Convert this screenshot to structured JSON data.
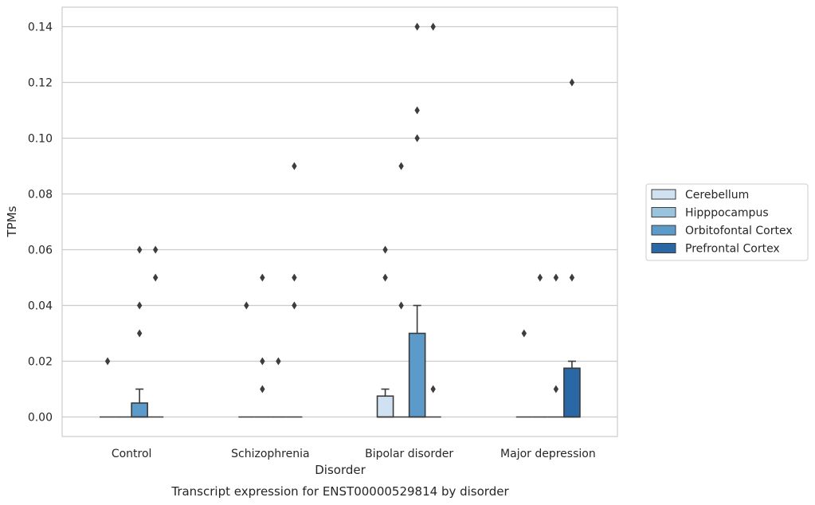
{
  "chart_data": {
    "type": "box",
    "title": "",
    "caption": "Transcript expression for ENST00000529814 by disorder",
    "xlabel": "Disorder",
    "ylabel": "TPMs",
    "ylim": [
      -0.007,
      0.147
    ],
    "yticks": [
      "0.00",
      "0.02",
      "0.04",
      "0.06",
      "0.08",
      "0.10",
      "0.12",
      "0.14"
    ],
    "ytick_values": [
      0,
      0.02,
      0.04,
      0.06,
      0.08,
      0.1,
      0.12,
      0.14
    ],
    "grid": "horizontal",
    "legend_position": "right",
    "categories": [
      "Control",
      "Schizophrenia",
      "Bipolar disorder",
      "Major depression"
    ],
    "series": [
      {
        "name": "Cerebellum",
        "color": "#d0e1f2",
        "boxes": [
          {
            "q1": 0,
            "median": 0,
            "q3": 0,
            "whisker_low": 0,
            "whisker_high": 0,
            "outliers": [
              0.02
            ]
          },
          {
            "q1": 0,
            "median": 0,
            "q3": 0,
            "whisker_low": 0,
            "whisker_high": 0,
            "outliers": [
              0.04
            ]
          },
          {
            "q1": 0,
            "median": 0,
            "q3": 0.0075,
            "whisker_low": 0,
            "whisker_high": 0.01,
            "outliers": [
              0.05,
              0.06
            ]
          },
          {
            "q1": 0,
            "median": 0,
            "q3": 0,
            "whisker_low": 0,
            "whisker_high": 0,
            "outliers": [
              0.03
            ]
          }
        ]
      },
      {
        "name": "Hipppocampus",
        "color": "#9ac3de",
        "boxes": [
          {
            "q1": 0,
            "median": 0,
            "q3": 0,
            "whisker_low": 0,
            "whisker_high": 0,
            "outliers": []
          },
          {
            "q1": 0,
            "median": 0,
            "q3": 0,
            "whisker_low": 0,
            "whisker_high": 0,
            "outliers": [
              0.01,
              0.02,
              0.05
            ]
          },
          {
            "q1": 0,
            "median": 0,
            "q3": 0,
            "whisker_low": 0,
            "whisker_high": 0,
            "outliers": [
              0.04,
              0.09
            ]
          },
          {
            "q1": 0,
            "median": 0,
            "q3": 0,
            "whisker_low": 0,
            "whisker_high": 0,
            "outliers": [
              0.05
            ]
          }
        ]
      },
      {
        "name": "Orbitofontal Cortex",
        "color": "#5b9ac9",
        "boxes": [
          {
            "q1": 0,
            "median": 0,
            "q3": 0.005,
            "whisker_low": 0,
            "whisker_high": 0.01,
            "outliers": [
              0.03,
              0.04,
              0.06
            ]
          },
          {
            "q1": 0,
            "median": 0,
            "q3": 0,
            "whisker_low": 0,
            "whisker_high": 0,
            "outliers": [
              0.02
            ]
          },
          {
            "q1": 0,
            "median": 0,
            "q3": 0.03,
            "whisker_low": 0,
            "whisker_high": 0.04,
            "outliers": [
              0.1,
              0.11,
              0.14
            ]
          },
          {
            "q1": 0,
            "median": 0,
            "q3": 0,
            "whisker_low": 0,
            "whisker_high": 0,
            "outliers": [
              0.01,
              0.05
            ]
          }
        ]
      },
      {
        "name": "Prefrontal Cortex",
        "color": "#2a67a5",
        "boxes": [
          {
            "q1": 0,
            "median": 0,
            "q3": 0,
            "whisker_low": 0,
            "whisker_high": 0,
            "outliers": [
              0.05,
              0.06
            ]
          },
          {
            "q1": 0,
            "median": 0,
            "q3": 0,
            "whisker_low": 0,
            "whisker_high": 0,
            "outliers": [
              0.04,
              0.05,
              0.09
            ]
          },
          {
            "q1": 0,
            "median": 0,
            "q3": 0,
            "whisker_low": 0,
            "whisker_high": 0,
            "outliers": [
              0.01,
              0.14
            ]
          },
          {
            "q1": 0,
            "median": 0,
            "q3": 0.0175,
            "whisker_low": 0,
            "whisker_high": 0.02,
            "outliers": [
              0.05,
              0.12
            ]
          }
        ]
      }
    ]
  }
}
